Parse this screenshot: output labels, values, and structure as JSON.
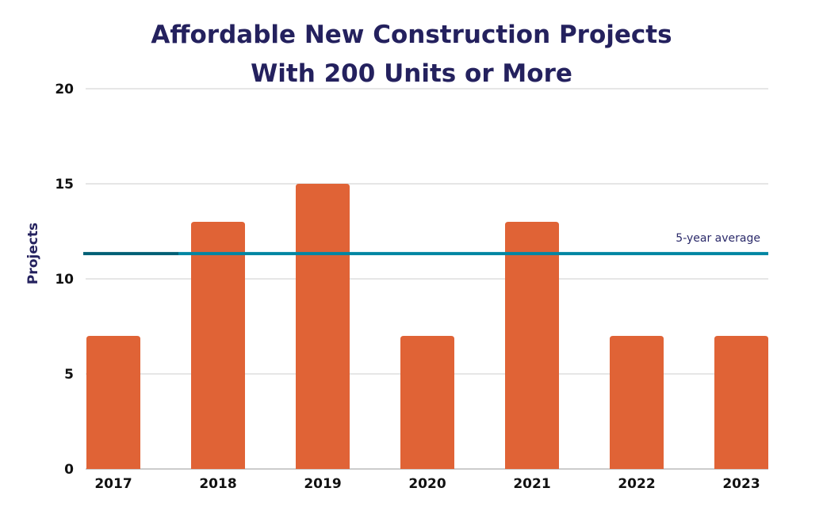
{
  "chart_data": {
    "type": "bar",
    "title": [
      "Affordable New Construction Projects",
      "With 200 Units or More"
    ],
    "xlabel": "",
    "ylabel": "Projects",
    "categories": [
      "2017",
      "2018",
      "2019",
      "2020",
      "2021",
      "2022",
      "2023"
    ],
    "values": [
      7,
      13,
      15,
      7,
      13,
      7,
      7
    ],
    "ylim": [
      0,
      20
    ],
    "yticks": [
      0,
      5,
      10,
      15,
      20
    ],
    "grid": true,
    "reference_line": {
      "label": "5-year average",
      "value": 11.33
    },
    "colors": {
      "bar": "#e06336",
      "line": "#0086a3",
      "line_dark": "#005f75",
      "title": "#24215e",
      "grid": "#cccccc"
    }
  }
}
